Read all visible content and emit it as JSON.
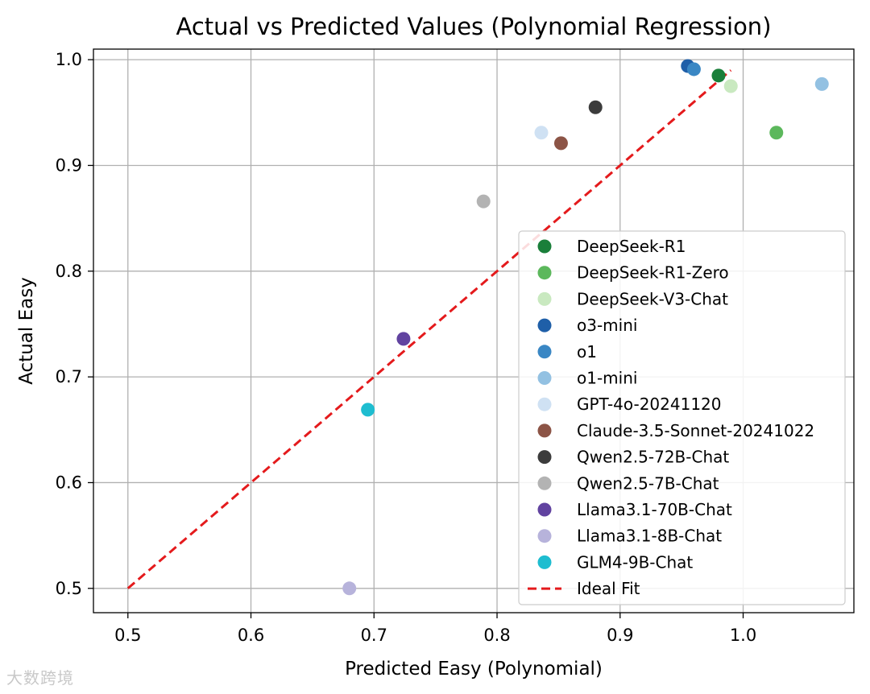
{
  "chart_data": {
    "type": "scatter",
    "title": "Actual vs Predicted Values (Polynomial Regression)",
    "xlabel": "Predicted Easy (Polynomial)",
    "ylabel": "Actual Easy",
    "xlim": [
      0.472,
      1.09
    ],
    "ylim": [
      0.477,
      1.01
    ],
    "xticks": [
      0.5,
      0.6,
      0.7,
      0.8,
      0.9,
      1.0
    ],
    "xtick_labels": [
      "0.5",
      "0.6",
      "0.7",
      "0.8",
      "0.9",
      "1.0"
    ],
    "yticks": [
      0.5,
      0.6,
      0.7,
      0.8,
      0.9,
      1.0
    ],
    "ytick_labels": [
      "0.5",
      "0.6",
      "0.7",
      "0.8",
      "0.9",
      "1.0"
    ],
    "grid": true,
    "legend_position": "lower-right",
    "series": [
      {
        "name": "DeepSeek-R1",
        "color": "#1a7f3a",
        "x": 0.98,
        "y": 0.985
      },
      {
        "name": "DeepSeek-R1-Zero",
        "color": "#5cb85c",
        "x": 1.027,
        "y": 0.931
      },
      {
        "name": "DeepSeek-V3-Chat",
        "color": "#c9e9c0",
        "x": 0.99,
        "y": 0.975
      },
      {
        "name": "o3-mini",
        "color": "#1f5fa8",
        "x": 0.955,
        "y": 0.994
      },
      {
        "name": "o1",
        "color": "#3a87c4",
        "x": 0.96,
        "y": 0.991
      },
      {
        "name": "o1-mini",
        "color": "#93c1e2",
        "x": 1.064,
        "y": 0.977
      },
      {
        "name": "GPT-4o-20241120",
        "color": "#cfe1f3",
        "x": 0.836,
        "y": 0.931
      },
      {
        "name": "Claude-3.5-Sonnet-20241022",
        "color": "#8c5446",
        "x": 0.852,
        "y": 0.921
      },
      {
        "name": "Qwen2.5-72B-Chat",
        "color": "#3c3c3c",
        "x": 0.88,
        "y": 0.955
      },
      {
        "name": "Qwen2.5-7B-Chat",
        "color": "#b3b3b3",
        "x": 0.789,
        "y": 0.866
      },
      {
        "name": "Llama3.1-70B-Chat",
        "color": "#6143a0",
        "x": 0.724,
        "y": 0.736
      },
      {
        "name": "Llama3.1-8B-Chat",
        "color": "#b7b3db",
        "x": 0.68,
        "y": 0.5
      },
      {
        "name": "GLM4-9B-Chat",
        "color": "#1ebdd0",
        "x": 0.695,
        "y": 0.669
      }
    ],
    "ideal_fit": {
      "name": "Ideal Fit",
      "color": "#e41a1c",
      "x": [
        0.5,
        0.99
      ],
      "y": [
        0.5,
        0.99
      ]
    }
  },
  "watermark": "大数跨境"
}
